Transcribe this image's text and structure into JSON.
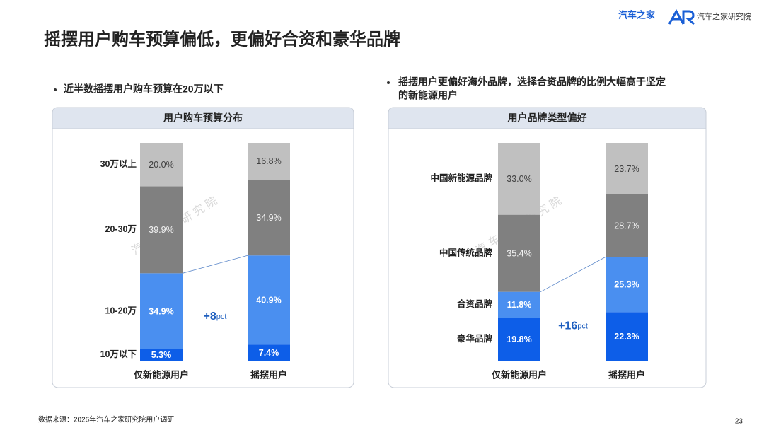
{
  "page": {
    "title": "摇摆用户购车预算偏低，更偏好合资和豪华品牌",
    "logo": "汽车之家",
    "institute": "汽车之家研究院",
    "left_bullet": "近半数摇摆用户购车预算在20万以下",
    "right_bullet": [
      "摇摆用户更偏好海外品牌，选择合资品牌的比例大幅高于坚定",
      "的新能源用户"
    ],
    "watermark": "汽 车 之 家 研 究 院",
    "source": "数据来源：2026年汽车之家研究院用户调研",
    "page_number": "23"
  },
  "chart_data": [
    {
      "type": "stacked_bar",
      "title": "用户购车预算分布",
      "categories": [
        "仅新能源用户",
        "摇摆用户"
      ],
      "series": [
        {
          "name": "10万以下",
          "color": "#0d5ee8",
          "label_color": "#ffffff",
          "values": [
            5.3,
            7.4
          ],
          "value_labels": [
            "5.3%",
            "7.4%"
          ]
        },
        {
          "name": "10-20万",
          "color": "#4a8ff0",
          "label_color": "#ffffff",
          "values": [
            34.9,
            40.9
          ],
          "value_labels": [
            "34.9%",
            "40.9%"
          ]
        },
        {
          "name": "20-30万",
          "color": "#808080",
          "label_color": "#f2f2f2",
          "values": [
            39.9,
            34.9
          ],
          "value_labels": [
            "39.9%",
            "34.9%"
          ]
        },
        {
          "name": "30万以上",
          "color": "#c0c0c0",
          "label_color": "#404040",
          "values": [
            20.0,
            16.8
          ],
          "value_labels": [
            "20.0%",
            "16.8%"
          ]
        }
      ],
      "annotation": "+8",
      "annotation_unit": "pct"
    },
    {
      "type": "stacked_bar",
      "title": "用户品牌类型偏好",
      "categories": [
        "仅新能源用户",
        "摇摆用户"
      ],
      "series": [
        {
          "name": "豪华品牌",
          "color": "#0d5ee8",
          "label_color": "#ffffff",
          "values": [
            19.8,
            22.3
          ],
          "value_labels": [
            "19.8%",
            "22.3%"
          ]
        },
        {
          "name": "合资品牌",
          "color": "#4a8ff0",
          "label_color": "#ffffff",
          "values": [
            11.8,
            25.3
          ],
          "value_labels": [
            "11.8%",
            "25.3%"
          ]
        },
        {
          "name": "中国传统品牌",
          "color": "#808080",
          "label_color": "#f2f2f2",
          "values": [
            35.4,
            28.7
          ],
          "value_labels": [
            "35.4%",
            "28.7%"
          ]
        },
        {
          "name": "中国新能源品牌",
          "color": "#c0c0c0",
          "label_color": "#404040",
          "values": [
            33.0,
            23.7
          ],
          "value_labels": [
            "33.0%",
            "23.7%"
          ]
        }
      ],
      "annotation": "+16",
      "annotation_unit": "pct"
    }
  ]
}
